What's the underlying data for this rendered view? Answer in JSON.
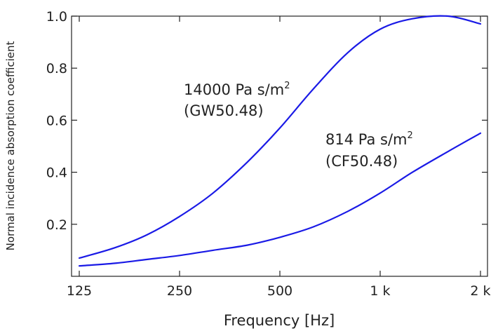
{
  "chart_data": {
    "type": "line",
    "xlabel": "Frequency [Hz]",
    "ylabel": "Normal incidence absorption coefficient",
    "x_scale": "log",
    "xlim": [
      125,
      2000
    ],
    "ylim": [
      0,
      1.0
    ],
    "x_ticks": [
      {
        "value": 125,
        "label": "125"
      },
      {
        "value": 250,
        "label": "250"
      },
      {
        "value": 500,
        "label": "500"
      },
      {
        "value": 1000,
        "label": "1 k"
      },
      {
        "value": 2000,
        "label": "2 k"
      }
    ],
    "y_ticks": [
      {
        "value": 0.2,
        "label": "0.2"
      },
      {
        "value": 0.4,
        "label": "0.4"
      },
      {
        "value": 0.6,
        "label": "0.6"
      },
      {
        "value": 0.8,
        "label": "0.8"
      },
      {
        "value": 1.0,
        "label": "1.0"
      }
    ],
    "grid": false,
    "line_color": "#1a1ae6",
    "series": [
      {
        "x": [
          125,
          160,
          200,
          250,
          315,
          400,
          500,
          630,
          800,
          1000,
          1250,
          1600,
          2000
        ],
        "values": [
          0.07,
          0.11,
          0.16,
          0.23,
          0.32,
          0.44,
          0.57,
          0.72,
          0.86,
          0.95,
          0.99,
          1.0,
          0.97
        ]
      },
      {
        "x": [
          125,
          160,
          200,
          250,
          315,
          400,
          500,
          630,
          800,
          1000,
          1250,
          1600,
          2000
        ],
        "values": [
          0.04,
          0.05,
          0.065,
          0.08,
          0.1,
          0.12,
          0.15,
          0.19,
          0.25,
          0.32,
          0.4,
          0.48,
          0.55
        ]
      }
    ],
    "annotations": [
      {
        "id": "gw",
        "main": "14000 Pa s/m",
        "sup": "2",
        "sub_label": "(GW50.48)"
      },
      {
        "id": "cf",
        "main": "814 Pa s/m",
        "sup": "2",
        "sub_label": "(CF50.48)"
      }
    ]
  }
}
